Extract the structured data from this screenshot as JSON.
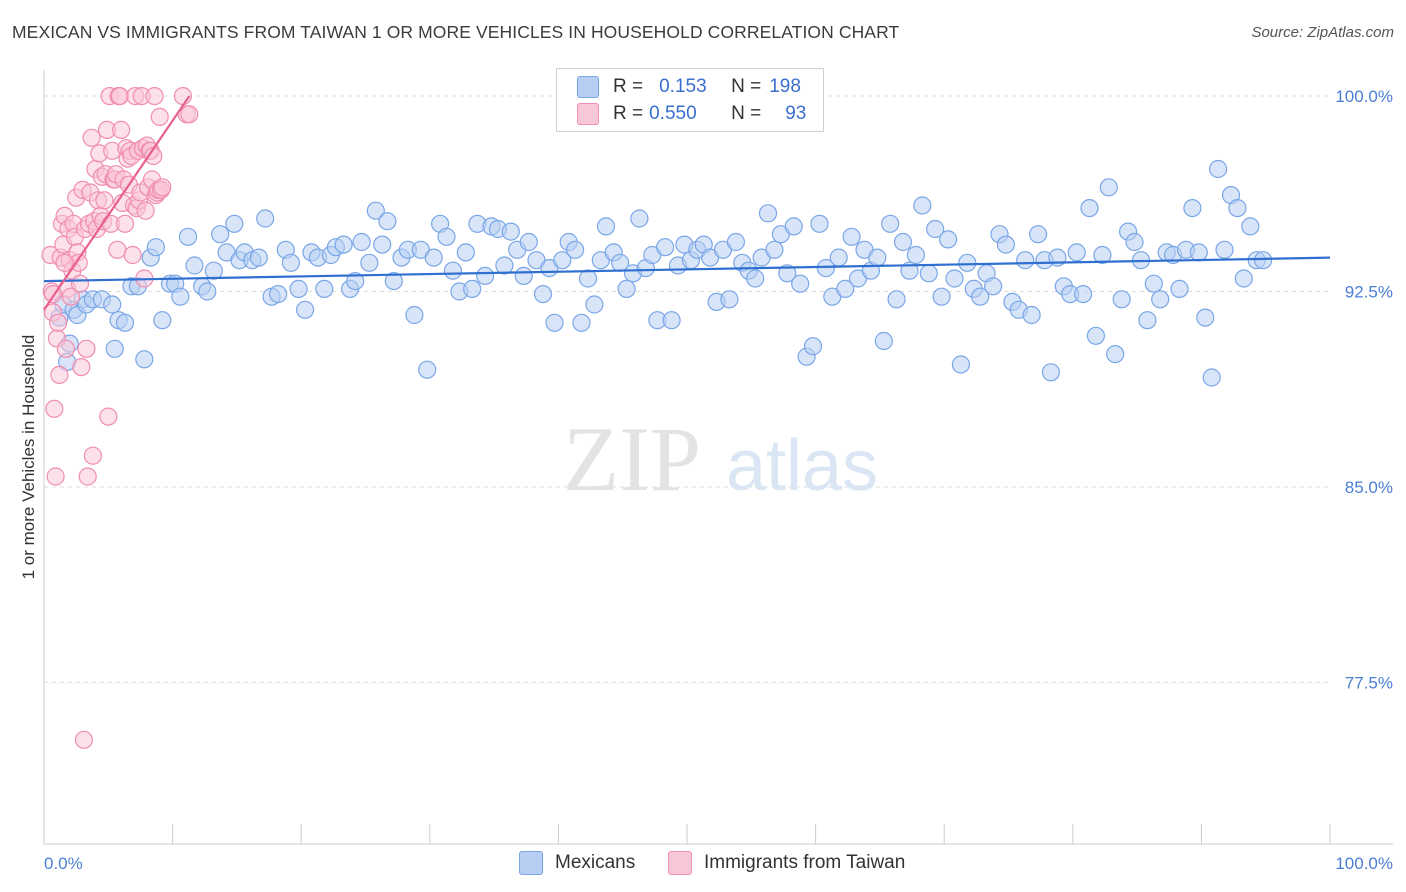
{
  "title": "MEXICAN VS IMMIGRANTS FROM TAIWAN 1 OR MORE VEHICLES IN HOUSEHOLD CORRELATION CHART",
  "source": "Source: ZipAtlas.com",
  "watermark": {
    "zip": "ZIP",
    "atlas": "atlas"
  },
  "legend": {
    "r_label": "R =",
    "n_label": "N =",
    "rows": [
      {
        "r": "0.153",
        "n": "198"
      },
      {
        "r": "0.550",
        "n": "93"
      }
    ]
  },
  "chart_data": {
    "type": "scatter",
    "title": "MEXICAN VS IMMIGRANTS FROM TAIWAN 1 OR MORE VEHICLES IN HOUSEHOLD CORRELATION CHART",
    "xlabel": "",
    "ylabel": "1 or more Vehicles in Household",
    "xlim": [
      0,
      100
    ],
    "ylim": [
      71.3,
      101.0
    ],
    "x_tick_labels": [
      "0.0%",
      "100.0%"
    ],
    "y_tick_values": [
      100.0,
      92.5,
      85.0,
      77.5
    ],
    "y_tick_labels": [
      "100.0%",
      "92.5%",
      "85.0%",
      "77.5%"
    ],
    "grid": true,
    "series": [
      {
        "name": "Mexicans",
        "color": "#7aa6e8",
        "fill": "#b8cff3",
        "line_color": "#2f6fcf",
        "trend": {
          "x": [
            0,
            100
          ],
          "y": [
            92.9,
            93.8
          ]
        },
        "points": [
          [
            1.2,
            91.5
          ],
          [
            1.5,
            92.0
          ],
          [
            1.8,
            89.8
          ],
          [
            2.0,
            90.5
          ],
          [
            2.3,
            91.8
          ],
          [
            2.6,
            91.6
          ],
          [
            3.0,
            92.2
          ],
          [
            3.3,
            92.0
          ],
          [
            3.8,
            92.2
          ],
          [
            4.5,
            92.2
          ],
          [
            5.3,
            92.0
          ],
          [
            5.5,
            90.3
          ],
          [
            5.8,
            91.4
          ],
          [
            6.3,
            91.3
          ],
          [
            6.8,
            92.7
          ],
          [
            7.3,
            92.7
          ],
          [
            7.8,
            89.9
          ],
          [
            8.3,
            93.8
          ],
          [
            8.7,
            94.2
          ],
          [
            9.2,
            91.4
          ],
          [
            9.8,
            92.8
          ],
          [
            10.2,
            92.8
          ],
          [
            10.6,
            92.3
          ],
          [
            11.2,
            94.6
          ],
          [
            11.7,
            93.5
          ],
          [
            12.3,
            92.7
          ],
          [
            12.7,
            92.5
          ],
          [
            13.2,
            93.3
          ],
          [
            13.7,
            94.7
          ],
          [
            14.2,
            94.0
          ],
          [
            14.8,
            95.1
          ],
          [
            15.2,
            93.7
          ],
          [
            15.6,
            94.0
          ],
          [
            16.2,
            93.7
          ],
          [
            16.7,
            93.8
          ],
          [
            17.2,
            95.3
          ],
          [
            17.7,
            92.3
          ],
          [
            18.2,
            92.4
          ],
          [
            18.8,
            94.1
          ],
          [
            19.2,
            93.6
          ],
          [
            19.8,
            92.6
          ],
          [
            20.3,
            91.8
          ],
          [
            20.8,
            94.0
          ],
          [
            21.3,
            93.8
          ],
          [
            21.8,
            92.6
          ],
          [
            22.3,
            93.9
          ],
          [
            22.7,
            94.2
          ],
          [
            23.3,
            94.3
          ],
          [
            23.8,
            92.6
          ],
          [
            24.2,
            92.9
          ],
          [
            24.7,
            94.4
          ],
          [
            25.3,
            93.6
          ],
          [
            25.8,
            95.6
          ],
          [
            26.3,
            94.3
          ],
          [
            26.7,
            95.2
          ],
          [
            27.2,
            92.9
          ],
          [
            27.8,
            93.8
          ],
          [
            28.3,
            94.1
          ],
          [
            28.8,
            91.6
          ],
          [
            29.3,
            94.1
          ],
          [
            29.8,
            89.5
          ],
          [
            30.3,
            93.8
          ],
          [
            30.8,
            95.1
          ],
          [
            31.3,
            94.6
          ],
          [
            31.8,
            93.3
          ],
          [
            32.3,
            92.5
          ],
          [
            32.8,
            94.0
          ],
          [
            33.3,
            92.6
          ],
          [
            33.7,
            95.1
          ],
          [
            34.3,
            93.1
          ],
          [
            34.8,
            95.0
          ],
          [
            35.3,
            94.9
          ],
          [
            35.8,
            93.5
          ],
          [
            36.3,
            94.8
          ],
          [
            36.8,
            94.1
          ],
          [
            37.3,
            93.1
          ],
          [
            37.7,
            94.4
          ],
          [
            38.3,
            93.7
          ],
          [
            38.8,
            92.4
          ],
          [
            39.3,
            93.4
          ],
          [
            39.7,
            91.3
          ],
          [
            40.3,
            93.7
          ],
          [
            40.8,
            94.4
          ],
          [
            41.3,
            94.1
          ],
          [
            41.8,
            91.3
          ],
          [
            42.3,
            93.0
          ],
          [
            42.8,
            92.0
          ],
          [
            43.3,
            93.7
          ],
          [
            43.7,
            95.0
          ],
          [
            44.3,
            94.0
          ],
          [
            44.8,
            93.6
          ],
          [
            45.3,
            92.6
          ],
          [
            45.8,
            93.2
          ],
          [
            46.3,
            95.3
          ],
          [
            46.8,
            93.4
          ],
          [
            47.3,
            93.9
          ],
          [
            47.7,
            91.4
          ],
          [
            48.3,
            94.2
          ],
          [
            48.8,
            91.4
          ],
          [
            49.3,
            93.5
          ],
          [
            49.8,
            94.3
          ],
          [
            50.3,
            93.7
          ],
          [
            50.8,
            94.1
          ],
          [
            51.3,
            94.3
          ],
          [
            51.8,
            93.8
          ],
          [
            52.3,
            92.1
          ],
          [
            52.8,
            94.1
          ],
          [
            53.3,
            92.2
          ],
          [
            53.8,
            94.4
          ],
          [
            54.3,
            93.6
          ],
          [
            54.8,
            93.3
          ],
          [
            55.3,
            93.0
          ],
          [
            55.8,
            93.8
          ],
          [
            56.3,
            95.5
          ],
          [
            56.8,
            94.1
          ],
          [
            57.3,
            94.7
          ],
          [
            57.8,
            93.2
          ],
          [
            58.3,
            95.0
          ],
          [
            58.8,
            92.8
          ],
          [
            59.3,
            90.0
          ],
          [
            59.8,
            90.4
          ],
          [
            60.3,
            95.1
          ],
          [
            60.8,
            93.4
          ],
          [
            61.3,
            92.3
          ],
          [
            61.8,
            93.8
          ],
          [
            62.3,
            92.6
          ],
          [
            62.8,
            94.6
          ],
          [
            63.3,
            93.0
          ],
          [
            63.8,
            94.1
          ],
          [
            64.3,
            93.3
          ],
          [
            64.8,
            93.8
          ],
          [
            65.3,
            90.6
          ],
          [
            65.8,
            95.1
          ],
          [
            66.3,
            92.2
          ],
          [
            66.8,
            94.4
          ],
          [
            67.3,
            93.3
          ],
          [
            67.8,
            93.9
          ],
          [
            68.3,
            95.8
          ],
          [
            68.8,
            93.2
          ],
          [
            69.3,
            94.9
          ],
          [
            69.8,
            92.3
          ],
          [
            70.3,
            94.5
          ],
          [
            70.8,
            93.0
          ],
          [
            71.3,
            89.7
          ],
          [
            71.8,
            93.6
          ],
          [
            72.3,
            92.6
          ],
          [
            72.8,
            92.3
          ],
          [
            73.3,
            93.2
          ],
          [
            73.8,
            92.7
          ],
          [
            74.3,
            94.7
          ],
          [
            74.8,
            94.3
          ],
          [
            75.3,
            92.1
          ],
          [
            75.8,
            91.8
          ],
          [
            76.3,
            93.7
          ],
          [
            76.8,
            91.6
          ],
          [
            77.3,
            94.7
          ],
          [
            77.8,
            93.7
          ],
          [
            78.3,
            89.4
          ],
          [
            78.8,
            93.8
          ],
          [
            79.3,
            92.7
          ],
          [
            79.8,
            92.4
          ],
          [
            80.3,
            94.0
          ],
          [
            80.8,
            92.4
          ],
          [
            81.3,
            95.7
          ],
          [
            81.8,
            90.8
          ],
          [
            82.3,
            93.9
          ],
          [
            82.8,
            96.5
          ],
          [
            83.3,
            90.1
          ],
          [
            83.8,
            92.2
          ],
          [
            84.3,
            94.8
          ],
          [
            84.8,
            94.4
          ],
          [
            85.3,
            93.7
          ],
          [
            85.8,
            91.4
          ],
          [
            86.3,
            92.8
          ],
          [
            86.8,
            92.2
          ],
          [
            87.3,
            94.0
          ],
          [
            87.8,
            93.9
          ],
          [
            88.3,
            92.6
          ],
          [
            88.8,
            94.1
          ],
          [
            89.3,
            95.7
          ],
          [
            89.8,
            94.0
          ],
          [
            90.3,
            91.5
          ],
          [
            90.8,
            89.2
          ],
          [
            91.3,
            97.2
          ],
          [
            91.8,
            94.1
          ],
          [
            92.3,
            96.2
          ],
          [
            92.8,
            95.7
          ],
          [
            93.3,
            93.0
          ],
          [
            93.8,
            95.0
          ],
          [
            94.3,
            93.7
          ],
          [
            94.8,
            93.7
          ]
        ]
      },
      {
        "name": "Immigrants from Taiwan",
        "color": "#f08db0",
        "fill": "#f9c6d8",
        "line_color": "#e8608f",
        "trend": {
          "x": [
            0,
            11.3
          ],
          "y": [
            91.8,
            100.0
          ]
        },
        "points": [
          [
            0.5,
            93.9
          ],
          [
            0.6,
            92.5
          ],
          [
            0.7,
            91.7
          ],
          [
            0.8,
            88.0
          ],
          [
            0.9,
            85.4
          ],
          [
            1.0,
            90.7
          ],
          [
            1.1,
            91.3
          ],
          [
            1.2,
            89.3
          ],
          [
            1.3,
            93.8
          ],
          [
            1.4,
            95.1
          ],
          [
            1.5,
            94.3
          ],
          [
            1.6,
            95.4
          ],
          [
            1.7,
            90.3
          ],
          [
            1.8,
            92.6
          ],
          [
            1.9,
            94.9
          ],
          [
            2.0,
            93.7
          ],
          [
            2.1,
            92.3
          ],
          [
            2.2,
            93.3
          ],
          [
            2.3,
            95.1
          ],
          [
            2.4,
            94.6
          ],
          [
            2.5,
            96.1
          ],
          [
            2.6,
            94.0
          ],
          [
            2.7,
            93.6
          ],
          [
            2.8,
            92.8
          ],
          [
            2.9,
            89.6
          ],
          [
            3.0,
            96.4
          ],
          [
            3.1,
            75.3
          ],
          [
            3.2,
            94.9
          ],
          [
            3.3,
            90.3
          ],
          [
            3.4,
            85.4
          ],
          [
            3.5,
            95.1
          ],
          [
            3.6,
            96.3
          ],
          [
            3.7,
            98.4
          ],
          [
            3.8,
            86.2
          ],
          [
            3.9,
            95.2
          ],
          [
            4.0,
            97.2
          ],
          [
            4.1,
            94.9
          ],
          [
            4.2,
            96.0
          ],
          [
            4.3,
            97.8
          ],
          [
            4.4,
            95.4
          ],
          [
            4.5,
            96.9
          ],
          [
            4.6,
            95.2
          ],
          [
            4.7,
            96.0
          ],
          [
            4.8,
            97.0
          ],
          [
            4.9,
            98.7
          ],
          [
            5.0,
            87.7
          ],
          [
            5.1,
            100.0
          ],
          [
            5.2,
            95.1
          ],
          [
            5.3,
            97.9
          ],
          [
            5.4,
            96.8
          ],
          [
            5.5,
            96.8
          ],
          [
            5.6,
            97.0
          ],
          [
            5.7,
            94.1
          ],
          [
            5.8,
            100.0
          ],
          [
            5.9,
            100.0
          ],
          [
            6.0,
            98.7
          ],
          [
            6.1,
            95.9
          ],
          [
            6.2,
            96.8
          ],
          [
            6.3,
            95.1
          ],
          [
            6.4,
            98.0
          ],
          [
            6.5,
            97.6
          ],
          [
            6.6,
            96.6
          ],
          [
            6.7,
            97.9
          ],
          [
            6.8,
            97.7
          ],
          [
            6.9,
            93.9
          ],
          [
            7.0,
            95.8
          ],
          [
            7.1,
            100.0
          ],
          [
            7.2,
            95.7
          ],
          [
            7.3,
            97.9
          ],
          [
            7.4,
            96.0
          ],
          [
            7.5,
            96.3
          ],
          [
            7.6,
            100.0
          ],
          [
            7.7,
            98.0
          ],
          [
            7.8,
            93.0
          ],
          [
            7.9,
            95.6
          ],
          [
            8.0,
            98.1
          ],
          [
            8.1,
            96.5
          ],
          [
            8.2,
            97.9
          ],
          [
            8.3,
            97.9
          ],
          [
            8.4,
            96.8
          ],
          [
            8.5,
            97.7
          ],
          [
            8.6,
            100.0
          ],
          [
            8.7,
            96.2
          ],
          [
            8.8,
            96.3
          ],
          [
            8.9,
            96.4
          ],
          [
            9.0,
            99.2
          ],
          [
            9.1,
            96.4
          ],
          [
            9.2,
            96.5
          ],
          [
            10.8,
            100.0
          ],
          [
            11.1,
            99.3
          ],
          [
            11.3,
            99.3
          ],
          [
            0.7,
            92.4
          ],
          [
            1.6,
            93.6
          ]
        ]
      }
    ]
  }
}
